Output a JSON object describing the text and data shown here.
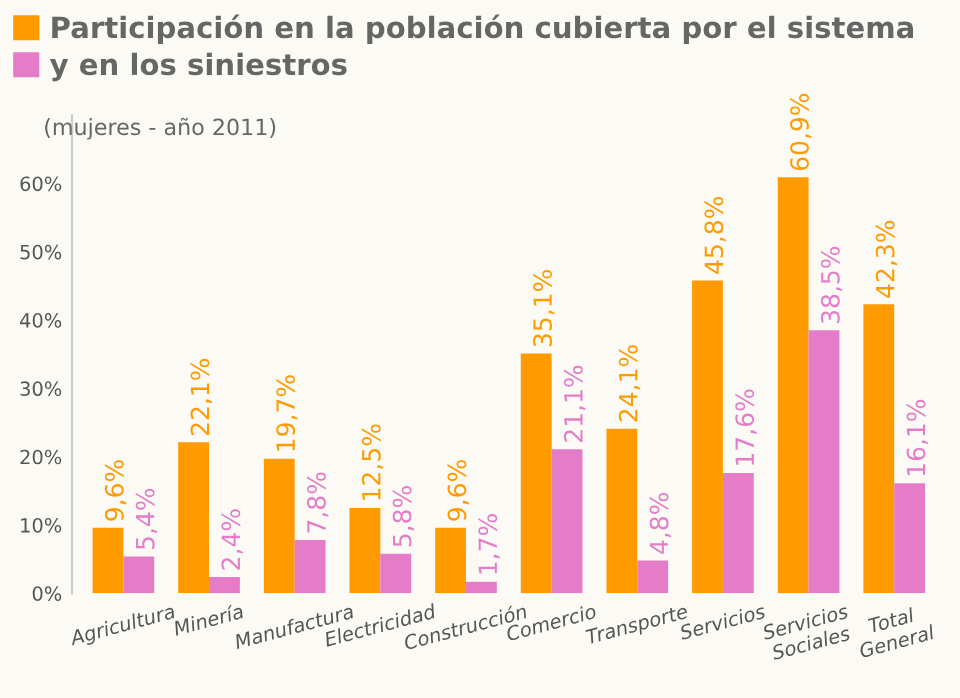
{
  "chart_data": {
    "type": "bar",
    "subtitle": "(mujeres - año 2011)",
    "categories": [
      "Agricultura",
      "Minería",
      "Manufactura",
      "Electricidad",
      "Construcción",
      "Comercio",
      "Transporte",
      "Servicios",
      "Servicios\nSociales",
      "Total\nGeneral"
    ],
    "series": [
      {
        "name": "Participación en la población cubierta por el sistema",
        "color": "#ff9a00",
        "values": [
          9.6,
          22.1,
          19.7,
          12.5,
          9.6,
          35.1,
          24.1,
          45.8,
          60.9,
          42.3
        ],
        "value_labels": [
          "9,6%",
          "22,1%",
          "19,7%",
          "12,5%",
          "9,6%",
          "35,1%",
          "24,1%",
          "45,8%",
          "60,9%",
          "42,3%"
        ]
      },
      {
        "name": "y en los siniestros",
        "color": "#e47cc8",
        "values": [
          5.4,
          2.4,
          7.8,
          5.8,
          1.7,
          21.1,
          4.8,
          17.6,
          38.5,
          16.1
        ],
        "value_labels": [
          "5,4%",
          "2,4%",
          "7,8%",
          "5,8%",
          "1,7%",
          "21,1%",
          "4,8%",
          "17,6%",
          "38,5%",
          "16,1%"
        ]
      }
    ],
    "ylim": [
      0,
      70
    ],
    "yticks": [
      {
        "value": 0,
        "label": "0%"
      },
      {
        "value": 10,
        "label": "10%"
      },
      {
        "value": 20,
        "label": "20%"
      },
      {
        "value": 30,
        "label": "30%"
      },
      {
        "value": 40,
        "label": "40%"
      },
      {
        "value": 50,
        "label": "50%"
      },
      {
        "value": 60,
        "label": "60%"
      }
    ],
    "grid": false,
    "legend": "top left"
  }
}
